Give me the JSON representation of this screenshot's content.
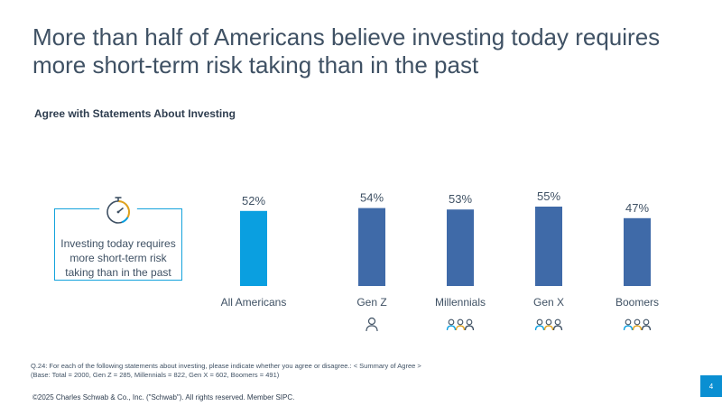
{
  "slide": {
    "title": "More than half of Americans believe investing today requires more short-term risk taking than in the past",
    "subtitle": "Agree with Statements About Investing",
    "statement": "Investing today requires more short-term risk taking than in the past",
    "footnote_q": "Q.24: For each of the following statements about investing, please indicate whether you agree or disagree.: < Summary of Agree >",
    "footnote_base": "(Base: Total = 2000, Gen Z = 285, Millennials = 822, Gen X = 602, Boomers = 491)",
    "copyright": "©2025 Charles Schwab & Co., Inc. (\"Schwab\"). All rights reserved. Member SIPC.",
    "page_number": "4"
  },
  "icons": {
    "statement": "stopwatch-icon",
    "categories": [
      "",
      "person-icon",
      "group-icon",
      "group-icon",
      "group-icon"
    ]
  },
  "colors": {
    "highlight_bar": "#0a9fe0",
    "bar": "#3f6aa8",
    "accent_box": "#14a3dc",
    "text": "#3f5164"
  },
  "chart_data": {
    "type": "bar",
    "title": "Agree with Statements About Investing",
    "categories": [
      "All Americans",
      "Gen Z",
      "Millennials",
      "Gen X",
      "Boomers"
    ],
    "values": [
      52,
      54,
      53,
      55,
      47
    ],
    "data_labels": [
      "52%",
      "54%",
      "53%",
      "55%",
      "47%"
    ],
    "unit": "%",
    "highlight_index": 0,
    "xlabel": "",
    "ylabel": "",
    "grid": false,
    "legend": "none"
  }
}
